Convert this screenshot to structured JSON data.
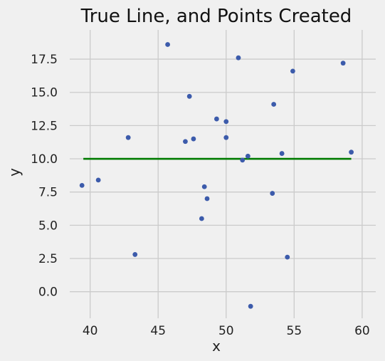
{
  "chart_data": {
    "type": "scatter",
    "title": "True Line, and Points Created",
    "xlabel": "x",
    "ylabel": "y",
    "xlim": [
      38.5,
      61
    ],
    "ylim": [
      -2,
      19.7
    ],
    "x_ticks": [
      40,
      45,
      50,
      55,
      60
    ],
    "y_ticks": [
      0.0,
      2.5,
      5.0,
      7.5,
      10.0,
      12.5,
      15.0,
      17.5
    ],
    "x_tick_labels": [
      "40",
      "45",
      "50",
      "55",
      "60"
    ],
    "y_tick_labels": [
      "0.0",
      "2.5",
      "5.0",
      "7.5",
      "10.0",
      "12.5",
      "15.0",
      "17.5"
    ],
    "grid": true,
    "colors": {
      "background": "#f0f0f0",
      "grid": "#cbcbcb",
      "points": "#3c5bab",
      "line": "#007b00"
    },
    "true_line": {
      "x": [
        39.5,
        59.2
      ],
      "y": [
        10.0,
        10.0
      ]
    },
    "points": [
      {
        "x": 39.4,
        "y": 8.0
      },
      {
        "x": 40.6,
        "y": 8.4
      },
      {
        "x": 42.8,
        "y": 11.6
      },
      {
        "x": 43.3,
        "y": 2.8
      },
      {
        "x": 45.7,
        "y": 18.6
      },
      {
        "x": 47.0,
        "y": 11.3
      },
      {
        "x": 47.3,
        "y": 14.7
      },
      {
        "x": 47.6,
        "y": 11.5
      },
      {
        "x": 48.2,
        "y": 5.5
      },
      {
        "x": 48.4,
        "y": 7.9
      },
      {
        "x": 48.6,
        "y": 7.0
      },
      {
        "x": 49.3,
        "y": 13.0
      },
      {
        "x": 50.0,
        "y": 11.6
      },
      {
        "x": 50.0,
        "y": 12.8
      },
      {
        "x": 50.9,
        "y": 17.6
      },
      {
        "x": 51.2,
        "y": 9.9
      },
      {
        "x": 51.6,
        "y": 10.2
      },
      {
        "x": 51.8,
        "y": -1.1
      },
      {
        "x": 53.4,
        "y": 7.4
      },
      {
        "x": 53.5,
        "y": 14.1
      },
      {
        "x": 54.1,
        "y": 10.4
      },
      {
        "x": 54.5,
        "y": 2.6
      },
      {
        "x": 54.9,
        "y": 16.6
      },
      {
        "x": 58.6,
        "y": 17.2
      },
      {
        "x": 59.2,
        "y": 10.5
      }
    ]
  }
}
